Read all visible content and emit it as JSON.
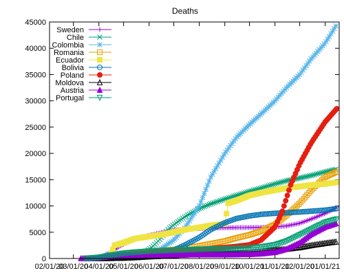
{
  "chart_data": {
    "type": "line",
    "title": "Deaths",
    "xlabel": "",
    "ylabel": "",
    "x_tick_labels": [
      "02/01/20",
      "03/01/20",
      "04/01/20",
      "05/01/20",
      "06/01/20",
      "07/01/20",
      "08/01/20",
      "09/01/20",
      "10/01/20",
      "11/01/20",
      "12/01/20",
      "01/01/21"
    ],
    "y_ticks": [
      0,
      5000,
      10000,
      15000,
      20000,
      25000,
      30000,
      35000,
      40000,
      45000
    ],
    "ylim": [
      0,
      45000
    ],
    "xlim": [
      "2020-02-01",
      "2021-01-18"
    ],
    "grid": false,
    "legend_position": "top-left",
    "series": [
      {
        "name": "Sweden",
        "color": "#9400d3",
        "marker": "plus",
        "points": [
          [
            "2020-03-10",
            0
          ],
          [
            "2020-03-25",
            100
          ],
          [
            "2020-04-05",
            400
          ],
          [
            "2020-04-15",
            1200
          ],
          [
            "2020-04-25",
            2200
          ],
          [
            "2020-05-01",
            2700
          ],
          [
            "2020-05-15",
            3700
          ],
          [
            "2020-06-01",
            4400
          ],
          [
            "2020-06-15",
            4900
          ],
          [
            "2020-07-01",
            5400
          ],
          [
            "2020-07-20",
            5600
          ],
          [
            "2020-08-15",
            5800
          ],
          [
            "2020-09-15",
            5880
          ],
          [
            "2020-10-15",
            5920
          ],
          [
            "2020-11-01",
            6000
          ],
          [
            "2020-11-15",
            6200
          ],
          [
            "2020-12-01",
            6700
          ],
          [
            "2020-12-15",
            7500
          ],
          [
            "2021-01-01",
            8600
          ],
          [
            "2021-01-15",
            9700
          ]
        ]
      },
      {
        "name": "Chile",
        "color": "#009e73",
        "marker": "x",
        "points": [
          [
            "2020-03-20",
            0
          ],
          [
            "2020-04-15",
            100
          ],
          [
            "2020-05-01",
            300
          ],
          [
            "2020-05-15",
            600
          ],
          [
            "2020-05-25",
            1000
          ],
          [
            "2020-06-05",
            2200
          ],
          [
            "2020-06-15",
            3800
          ],
          [
            "2020-06-25",
            5700
          ],
          [
            "2020-07-05",
            6900
          ],
          [
            "2020-07-15",
            8000
          ],
          [
            "2020-08-01",
            9500
          ],
          [
            "2020-08-15",
            10400
          ],
          [
            "2020-09-01",
            11300
          ],
          [
            "2020-09-15",
            12000
          ],
          [
            "2020-10-01",
            12800
          ],
          [
            "2020-10-15",
            13400
          ],
          [
            "2020-11-01",
            14200
          ],
          [
            "2020-11-15",
            14800
          ],
          [
            "2020-12-01",
            15300
          ],
          [
            "2020-12-15",
            15800
          ],
          [
            "2021-01-01",
            16500
          ],
          [
            "2021-01-15",
            17000
          ]
        ]
      },
      {
        "name": "Colombia",
        "color": "#56b4e9",
        "marker": "star",
        "points": [
          [
            "2020-03-20",
            0
          ],
          [
            "2020-04-15",
            100
          ],
          [
            "2020-05-01",
            250
          ],
          [
            "2020-05-15",
            500
          ],
          [
            "2020-06-01",
            1000
          ],
          [
            "2020-06-15",
            1800
          ],
          [
            "2020-07-01",
            3500
          ],
          [
            "2020-07-15",
            6000
          ],
          [
            "2020-08-01",
            10000
          ],
          [
            "2020-08-15",
            15500
          ],
          [
            "2020-09-01",
            20000
          ],
          [
            "2020-09-15",
            23000
          ],
          [
            "2020-10-01",
            25500
          ],
          [
            "2020-10-15",
            27500
          ],
          [
            "2020-11-01",
            30000
          ],
          [
            "2020-11-15",
            32500
          ],
          [
            "2020-12-01",
            35000
          ],
          [
            "2020-12-15",
            38000
          ],
          [
            "2021-01-01",
            41000
          ],
          [
            "2021-01-15",
            44500
          ]
        ]
      },
      {
        "name": "Romania",
        "color": "#e69f00",
        "marker": "square",
        "points": [
          [
            "2020-03-15",
            0
          ],
          [
            "2020-04-01",
            80
          ],
          [
            "2020-04-15",
            350
          ],
          [
            "2020-05-01",
            800
          ],
          [
            "2020-05-15",
            1100
          ],
          [
            "2020-06-01",
            1300
          ],
          [
            "2020-06-15",
            1500
          ],
          [
            "2020-07-01",
            1700
          ],
          [
            "2020-07-15",
            2000
          ],
          [
            "2020-08-01",
            2400
          ],
          [
            "2020-08-15",
            2800
          ],
          [
            "2020-09-01",
            3300
          ],
          [
            "2020-09-15",
            3900
          ],
          [
            "2020-10-01",
            4500
          ],
          [
            "2020-10-15",
            5200
          ],
          [
            "2020-11-01",
            6500
          ],
          [
            "2020-11-15",
            8200
          ],
          [
            "2020-12-01",
            10500
          ],
          [
            "2020-12-15",
            13000
          ],
          [
            "2021-01-01",
            15500
          ],
          [
            "2021-01-15",
            16500
          ]
        ]
      },
      {
        "name": "Ecuador",
        "color": "#f0e442",
        "marker": "filled-square",
        "points": [
          [
            "2020-03-15",
            0
          ],
          [
            "2020-04-01",
            200
          ],
          [
            "2020-04-15",
            600
          ],
          [
            "2020-04-20",
            2500
          ],
          [
            "2020-05-01",
            3000
          ],
          [
            "2020-05-15",
            3800
          ],
          [
            "2020-06-01",
            4200
          ],
          [
            "2020-06-15",
            4500
          ],
          [
            "2020-07-01",
            5000
          ],
          [
            "2020-07-15",
            5500
          ],
          [
            "2020-08-01",
            5900
          ],
          [
            "2020-08-15",
            6300
          ],
          [
            "2020-09-01",
            6600
          ],
          [
            "2020-09-05",
            10500
          ],
          [
            "2020-09-15",
            11000
          ],
          [
            "2020-10-01",
            12000
          ],
          [
            "2020-10-15",
            12500
          ],
          [
            "2020-11-01",
            13000
          ],
          [
            "2020-11-15",
            13400
          ],
          [
            "2020-12-01",
            13700
          ],
          [
            "2020-12-15",
            14000
          ],
          [
            "2021-01-01",
            14200
          ],
          [
            "2021-01-15",
            14500
          ]
        ]
      },
      {
        "name": "Bolivia",
        "color": "#0072b2",
        "marker": "circle",
        "points": [
          [
            "2020-03-25",
            0
          ],
          [
            "2020-04-15",
            60
          ],
          [
            "2020-05-01",
            150
          ],
          [
            "2020-05-15",
            250
          ],
          [
            "2020-06-01",
            500
          ],
          [
            "2020-06-15",
            900
          ],
          [
            "2020-07-01",
            1600
          ],
          [
            "2020-07-15",
            2600
          ],
          [
            "2020-08-01",
            4000
          ],
          [
            "2020-08-15",
            5500
          ],
          [
            "2020-09-01",
            6800
          ],
          [
            "2020-09-15",
            7600
          ],
          [
            "2020-10-01",
            8100
          ],
          [
            "2020-10-15",
            8400
          ],
          [
            "2020-11-01",
            8600
          ],
          [
            "2020-11-15",
            8700
          ],
          [
            "2020-12-01",
            8850
          ],
          [
            "2020-12-15",
            9000
          ],
          [
            "2021-01-01",
            9200
          ],
          [
            "2021-01-15",
            9500
          ]
        ]
      },
      {
        "name": "Poland",
        "color": "#e51e10",
        "marker": "filled-circle",
        "points": [
          [
            "2020-03-15",
            0
          ],
          [
            "2020-04-01",
            50
          ],
          [
            "2020-04-15",
            300
          ],
          [
            "2020-05-01",
            650
          ],
          [
            "2020-05-15",
            900
          ],
          [
            "2020-06-01",
            1100
          ],
          [
            "2020-06-15",
            1300
          ],
          [
            "2020-07-01",
            1500
          ],
          [
            "2020-07-15",
            1650
          ],
          [
            "2020-08-01",
            1750
          ],
          [
            "2020-08-15",
            1900
          ],
          [
            "2020-09-01",
            2100
          ],
          [
            "2020-09-15",
            2300
          ],
          [
            "2020-10-01",
            2600
          ],
          [
            "2020-10-15",
            3500
          ],
          [
            "2020-11-01",
            6000
          ],
          [
            "2020-11-10",
            9000
          ],
          [
            "2020-11-20",
            14000
          ],
          [
            "2020-12-01",
            18000
          ],
          [
            "2020-12-15",
            22000
          ],
          [
            "2021-01-01",
            26000
          ],
          [
            "2021-01-15",
            28500
          ]
        ]
      },
      {
        "name": "Moldova",
        "color": "#000000",
        "marker": "triangle",
        "points": [
          [
            "2020-03-20",
            0
          ],
          [
            "2020-04-15",
            50
          ],
          [
            "2020-05-01",
            100
          ],
          [
            "2020-05-15",
            200
          ],
          [
            "2020-06-01",
            350
          ],
          [
            "2020-06-15",
            450
          ],
          [
            "2020-07-01",
            600
          ],
          [
            "2020-07-15",
            700
          ],
          [
            "2020-08-01",
            800
          ],
          [
            "2020-08-15",
            850
          ],
          [
            "2020-09-01",
            950
          ],
          [
            "2020-09-15",
            1050
          ],
          [
            "2020-10-01",
            1200
          ],
          [
            "2020-10-15",
            1400
          ],
          [
            "2020-11-01",
            1600
          ],
          [
            "2020-11-15",
            1800
          ],
          [
            "2020-12-01",
            2100
          ],
          [
            "2020-12-15",
            2500
          ],
          [
            "2021-01-01",
            2900
          ],
          [
            "2021-01-15",
            3200
          ]
        ]
      },
      {
        "name": "Austria",
        "color": "#9400d3",
        "marker": "filled-triangle",
        "points": [
          [
            "2020-03-10",
            0
          ],
          [
            "2020-03-25",
            50
          ],
          [
            "2020-04-05",
            200
          ],
          [
            "2020-04-15",
            400
          ],
          [
            "2020-05-01",
            550
          ],
          [
            "2020-05-15",
            620
          ],
          [
            "2020-06-01",
            670
          ],
          [
            "2020-07-01",
            700
          ],
          [
            "2020-08-01",
            720
          ],
          [
            "2020-09-01",
            740
          ],
          [
            "2020-10-01",
            800
          ],
          [
            "2020-10-15",
            900
          ],
          [
            "2020-11-01",
            1200
          ],
          [
            "2020-11-15",
            1800
          ],
          [
            "2020-12-01",
            3000
          ],
          [
            "2020-12-15",
            4600
          ],
          [
            "2021-01-01",
            6000
          ],
          [
            "2021-01-15",
            6700
          ]
        ]
      },
      {
        "name": "Portugal",
        "color": "#009e73",
        "marker": "inverted-triangle",
        "points": [
          [
            "2020-03-15",
            0
          ],
          [
            "2020-04-01",
            200
          ],
          [
            "2020-04-15",
            600
          ],
          [
            "2020-05-01",
            1000
          ],
          [
            "2020-05-15",
            1200
          ],
          [
            "2020-06-01",
            1400
          ],
          [
            "2020-07-01",
            1600
          ],
          [
            "2020-08-01",
            1750
          ],
          [
            "2020-09-01",
            1850
          ],
          [
            "2020-10-01",
            2000
          ],
          [
            "2020-10-15",
            2200
          ],
          [
            "2020-11-01",
            2600
          ],
          [
            "2020-11-15",
            3300
          ],
          [
            "2020-12-01",
            4500
          ],
          [
            "2020-12-15",
            5600
          ],
          [
            "2021-01-01",
            6900
          ],
          [
            "2021-01-15",
            7500
          ]
        ]
      }
    ]
  }
}
